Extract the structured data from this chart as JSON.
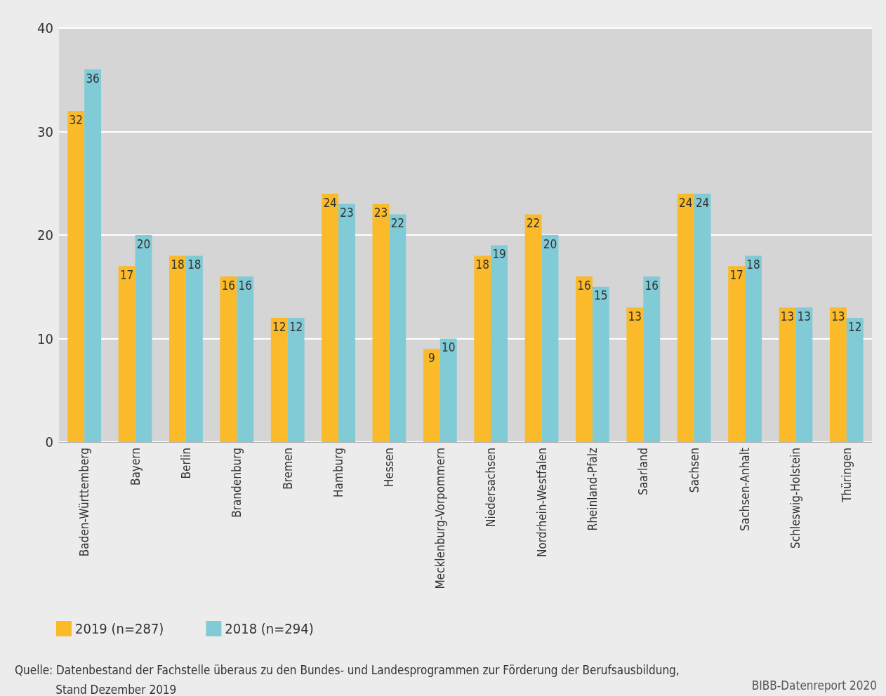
{
  "chart_data": {
    "type": "bar",
    "categories": [
      "Baden-Württemberg",
      "Bayern",
      "Berlin",
      "Brandenburg",
      "Bremen",
      "Hamburg",
      "Hessen",
      "Mecklenburg-Vorpommern",
      "Niedersachsen",
      "Nordrhein-Westfalen",
      "Rheinland-Pfalz",
      "Saarland",
      "Sachsen",
      "Sachsen-Anhalt",
      "Schleswig-Holstein",
      "Thüringen"
    ],
    "series": [
      {
        "name": "2019 (n=287)",
        "color": "#fbba29",
        "values": [
          32,
          17,
          18,
          16,
          12,
          24,
          23,
          9,
          18,
          22,
          16,
          13,
          24,
          17,
          13,
          13
        ]
      },
      {
        "name": "2018 (n=294)",
        "color": "#80cbd6",
        "values": [
          36,
          20,
          18,
          16,
          12,
          23,
          22,
          10,
          19,
          20,
          15,
          16,
          24,
          18,
          13,
          12
        ]
      }
    ],
    "ylim": [
      0,
      40
    ],
    "yticks": [
      0,
      10,
      20,
      30,
      40
    ],
    "grid": "y",
    "legend": "bottom left",
    "data_labels": true,
    "annotations": [
      "Quelle: Datenbestand der Fachstelle überaus zu den Bundes- und Landesprogrammen zur Förderung der Berufsausbildung,\n            Stand Dezember 2019",
      "BIBB-Datenreport 2020"
    ]
  }
}
